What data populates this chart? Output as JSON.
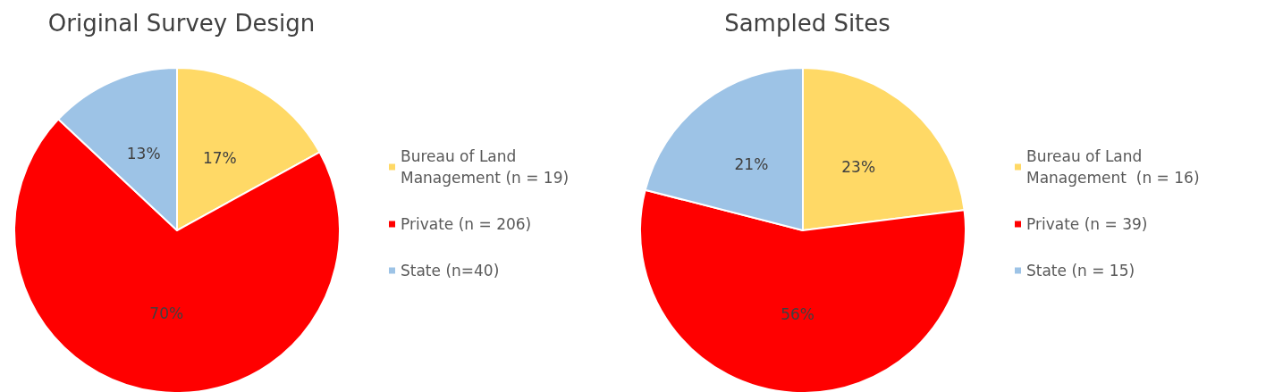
{
  "chart_data": [
    {
      "type": "pie",
      "title": "Original Survey Design",
      "categories": [
        "Bureau of Land Management (n = 19)",
        "Private (n = 206)",
        "State (n=40)"
      ],
      "values": [
        17,
        70,
        13
      ],
      "value_labels": [
        "17%",
        "70%",
        "13%"
      ],
      "colors": [
        "#ffd966",
        "#ff0000",
        "#9dc3e6"
      ],
      "legend": "right"
    },
    {
      "type": "pie",
      "title": "Sampled Sites",
      "categories": [
        "Bureau of Land Management  (n = 16)",
        "Private (n = 39)",
        "State (n = 15)"
      ],
      "values": [
        23,
        56,
        21
      ],
      "value_labels": [
        "23%",
        "56%",
        "21%"
      ],
      "colors": [
        "#ffd966",
        "#ff0000",
        "#9dc3e6"
      ],
      "legend": "right"
    }
  ]
}
